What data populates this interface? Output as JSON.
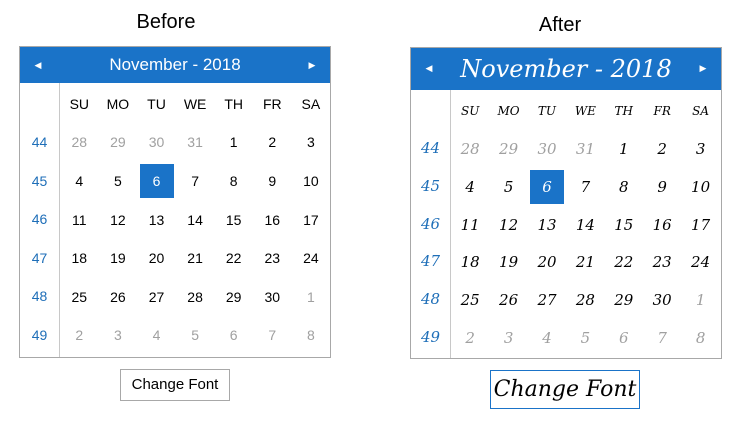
{
  "captions": {
    "before": "Before",
    "after": "After"
  },
  "calendar": {
    "month_title": "November - 2018",
    "prev_icon": "caret-left",
    "next_icon": "caret-right",
    "day_names": [
      "SU",
      "MO",
      "TU",
      "WE",
      "TH",
      "FR",
      "SA"
    ],
    "selected_day": "6",
    "weeks": [
      {
        "week": "44",
        "days": [
          {
            "d": "28",
            "other": true
          },
          {
            "d": "29",
            "other": true
          },
          {
            "d": "30",
            "other": true
          },
          {
            "d": "31",
            "other": true
          },
          {
            "d": "1"
          },
          {
            "d": "2"
          },
          {
            "d": "3"
          }
        ]
      },
      {
        "week": "45",
        "days": [
          {
            "d": "4"
          },
          {
            "d": "5"
          },
          {
            "d": "6",
            "selected": true
          },
          {
            "d": "7"
          },
          {
            "d": "8"
          },
          {
            "d": "9"
          },
          {
            "d": "10"
          }
        ]
      },
      {
        "week": "46",
        "days": [
          {
            "d": "11"
          },
          {
            "d": "12"
          },
          {
            "d": "13"
          },
          {
            "d": "14"
          },
          {
            "d": "15"
          },
          {
            "d": "16"
          },
          {
            "d": "17"
          }
        ]
      },
      {
        "week": "47",
        "days": [
          {
            "d": "18"
          },
          {
            "d": "19"
          },
          {
            "d": "20"
          },
          {
            "d": "21"
          },
          {
            "d": "22"
          },
          {
            "d": "23"
          },
          {
            "d": "24"
          }
        ]
      },
      {
        "week": "48",
        "days": [
          {
            "d": "25"
          },
          {
            "d": "26"
          },
          {
            "d": "27"
          },
          {
            "d": "28"
          },
          {
            "d": "29"
          },
          {
            "d": "30"
          },
          {
            "d": "1",
            "other": true
          }
        ]
      },
      {
        "week": "49",
        "days": [
          {
            "d": "2",
            "other": true
          },
          {
            "d": "3",
            "other": true
          },
          {
            "d": "4",
            "other": true
          },
          {
            "d": "5",
            "other": true
          },
          {
            "d": "6",
            "other": true
          },
          {
            "d": "7",
            "other": true
          },
          {
            "d": "8",
            "other": true
          }
        ]
      }
    ]
  },
  "button": {
    "label": "Change Font"
  },
  "colors": {
    "accent": "#1a73c8",
    "week_number": "#1e6eb8",
    "other_month": "#a0a0a0"
  }
}
